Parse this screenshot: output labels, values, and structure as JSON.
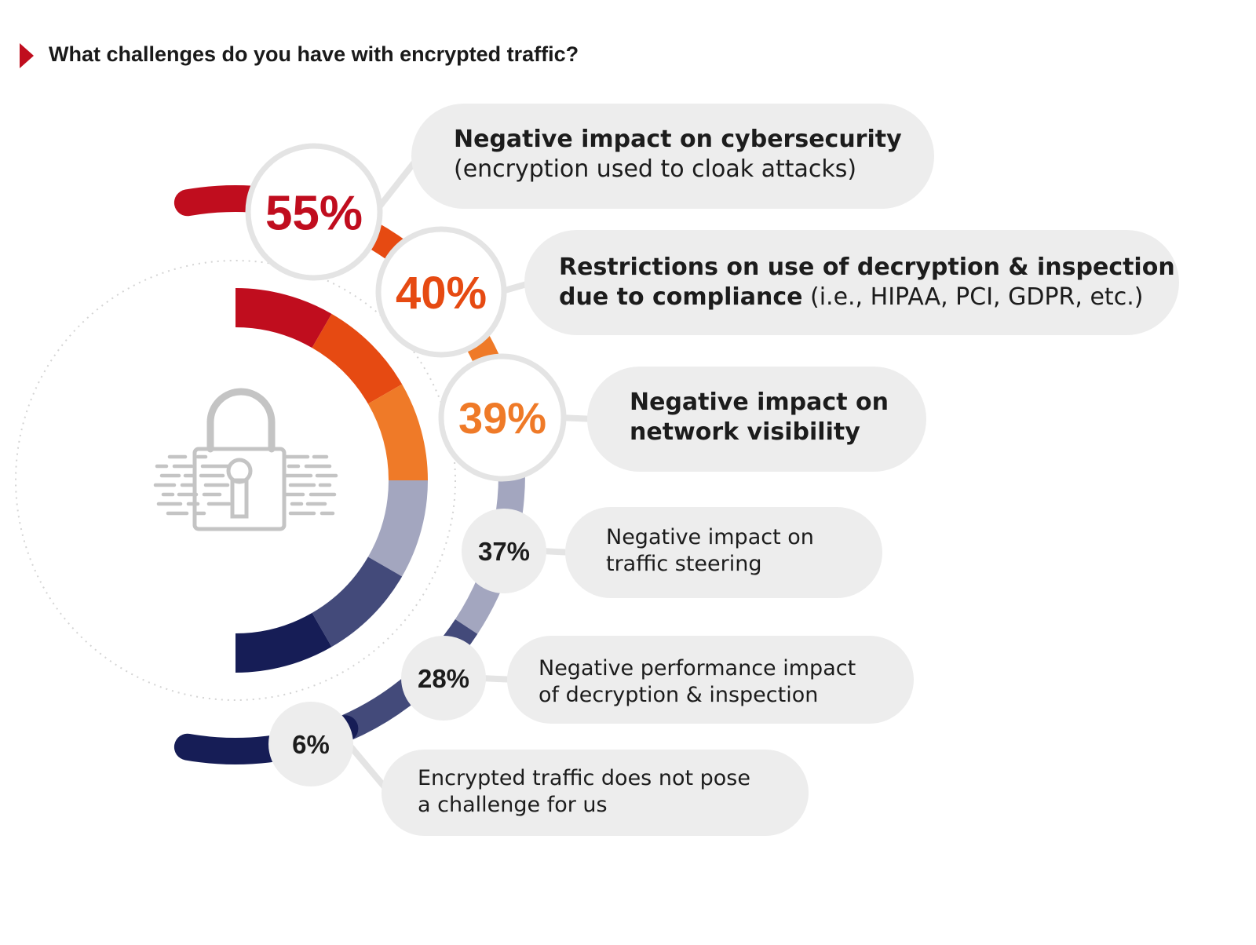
{
  "title": "What challenges do you have with encrypted traffic?",
  "colors": {
    "accent": "#c00d1e",
    "dark_red": "#c00d1e",
    "orange_red": "#e64a12",
    "orange": "#ef7a28",
    "gray_blue": "#a3a6bf",
    "slate": "#434a7a",
    "navy": "#161d56",
    "pill_bg": "#ededed",
    "badge_border": "#e4e4e4",
    "icon_gray": "#c4c4c4"
  },
  "icon": "padlock-icon",
  "chart_data": {
    "type": "bar",
    "layout": "radial-callouts",
    "unit": "%",
    "categories": [
      "Negative impact on cybersecurity (encryption used to cloak attacks)",
      "Restrictions on use of decryption & inspection due to compliance (i.e., HIPAA, PCI, GDPR, etc.)",
      "Negative impact on network visibility",
      "Negative impact on traffic steering",
      "Negative performance impact of decryption & inspection",
      "Encrypted traffic does not pose a challenge for us"
    ],
    "values": [
      55,
      40,
      39,
      37,
      28,
      6
    ],
    "items": [
      {
        "value": 55,
        "label": "55%",
        "color": "#c00d1e",
        "lines": [
          [
            {
              "t": "Negative impact on cybersecurity",
              "b": true
            }
          ],
          [
            {
              "t": "(encryption used to cloak attacks)",
              "b": false
            }
          ]
        ]
      },
      {
        "value": 40,
        "label": "40%",
        "color": "#e64a12",
        "lines": [
          [
            {
              "t": "Restrictions on use of decryption & inspection",
              "b": true
            }
          ],
          [
            {
              "t": "due to compliance",
              "b": true
            },
            {
              "t": " (i.e., HIPAA, PCI, GDPR, etc.)",
              "b": false
            }
          ]
        ]
      },
      {
        "value": 39,
        "label": "39%",
        "color": "#ef7a28",
        "lines": [
          [
            {
              "t": "Negative impact on",
              "b": true
            }
          ],
          [
            {
              "t": "network visibility",
              "b": true
            }
          ]
        ]
      },
      {
        "value": 37,
        "label": "37%",
        "color": "#1c1c1c",
        "lines": [
          [
            {
              "t": "Negative impact on",
              "b": false
            }
          ],
          [
            {
              "t": "traffic steering",
              "b": false
            }
          ]
        ]
      },
      {
        "value": 28,
        "label": "28%",
        "color": "#1c1c1c",
        "lines": [
          [
            {
              "t": "Negative performance impact",
              "b": false
            }
          ],
          [
            {
              "t": "of decryption & inspection",
              "b": false
            }
          ]
        ]
      },
      {
        "value": 6,
        "label": "6%",
        "color": "#1c1c1c",
        "lines": [
          [
            {
              "t": "Encrypted traffic does not pose",
              "b": false
            }
          ],
          [
            {
              "t": "a challenge for us",
              "b": false
            }
          ]
        ]
      }
    ]
  }
}
